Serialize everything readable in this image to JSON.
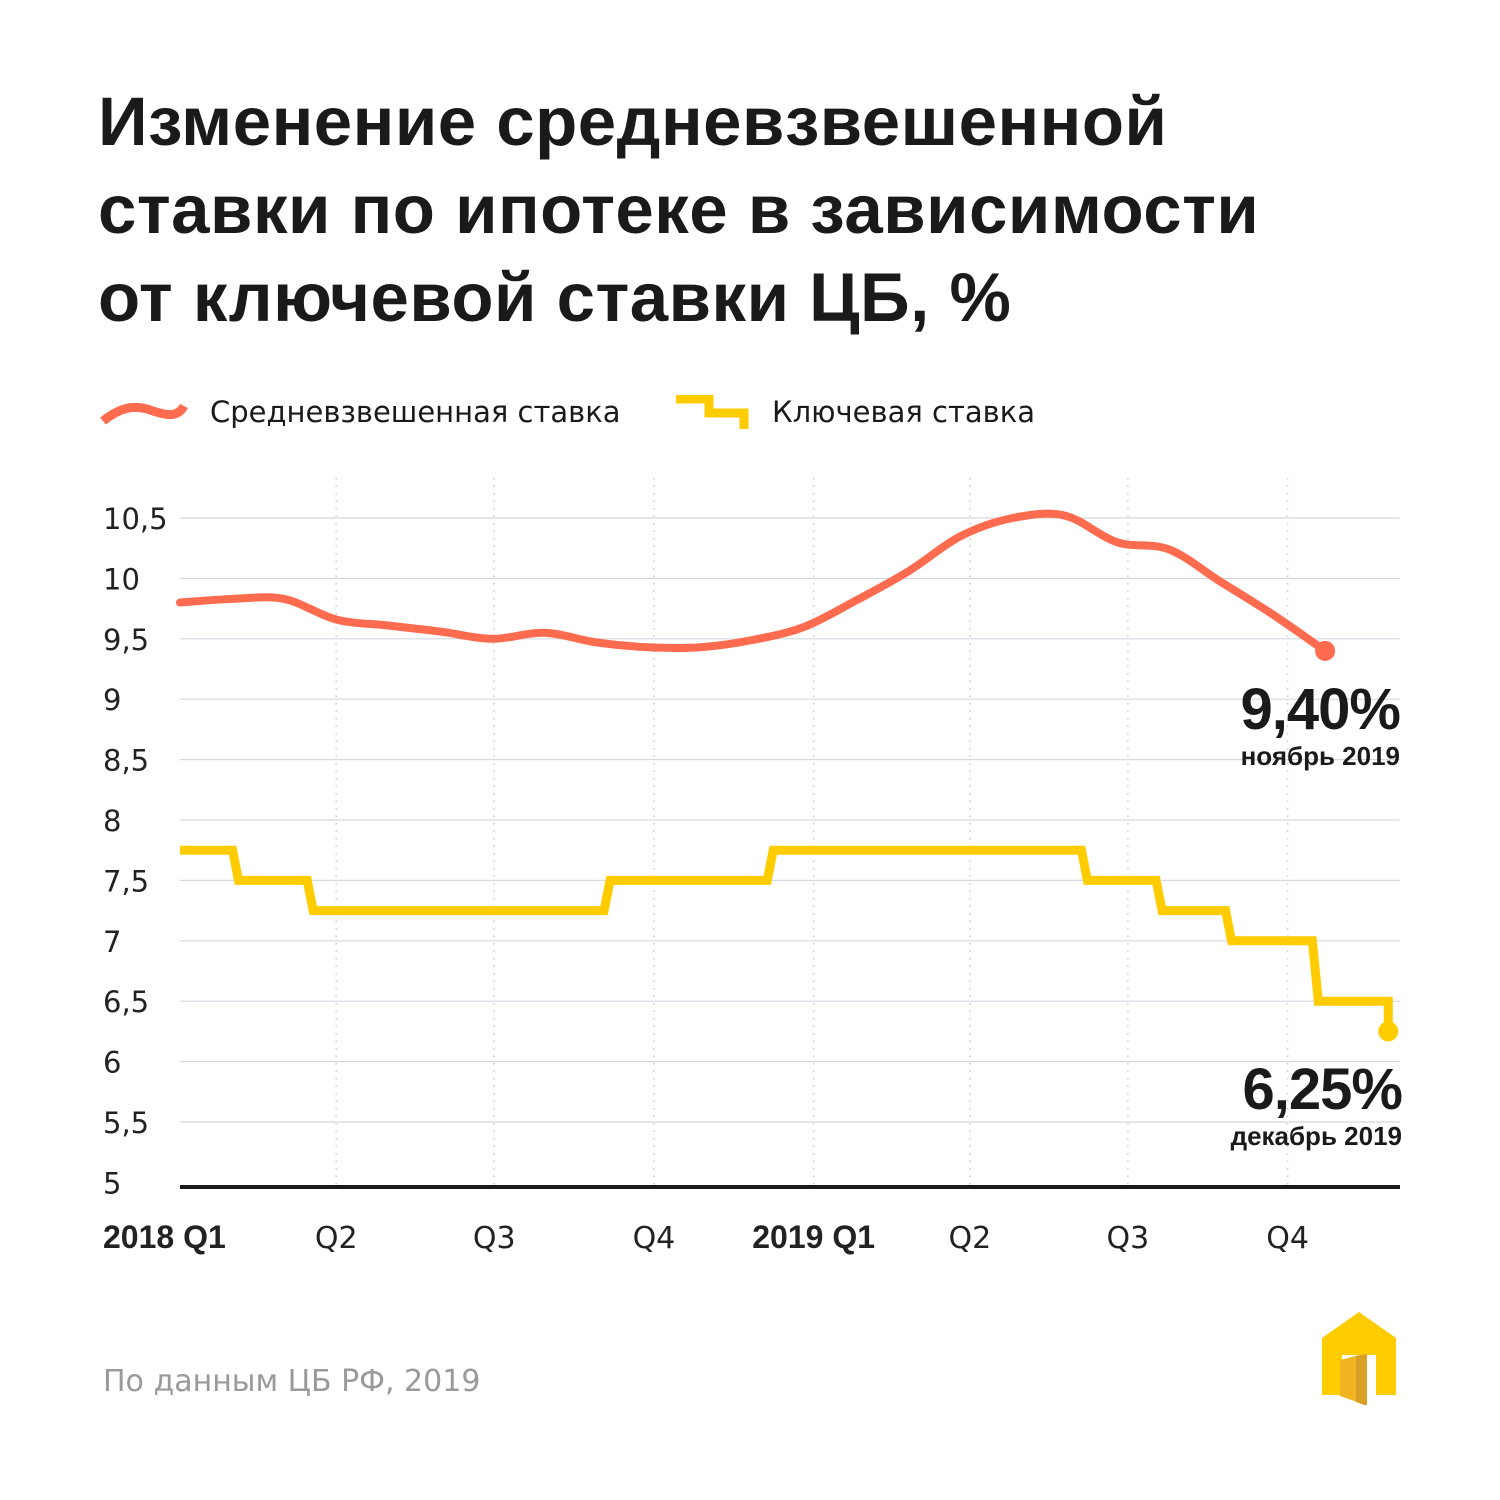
{
  "title_lines": [
    "Изменение средневзвешенной",
    "ставки по ипотеке в зависимости",
    "от ключевой ставки ЦБ, %"
  ],
  "source": "По данным ЦБ РФ, 2019",
  "logo_icon": "house-with-open-door-icon",
  "chart_data": {
    "type": "line",
    "title": "Изменение средневзвешенной ставки по ипотеке в зависимости от ключевой ставки ЦБ, %",
    "ylim": [
      5,
      10.5
    ],
    "y_ticks": [
      10.5,
      10,
      9.5,
      9,
      8.5,
      8,
      7.5,
      7,
      6.5,
      6,
      5.5,
      5
    ],
    "y_tick_labels": [
      "10,5",
      "10",
      "9,5",
      "9",
      "8,5",
      "8",
      "7,5",
      "7",
      "6,5",
      "6",
      "5,5",
      "5"
    ],
    "x_ticks": [
      {
        "date": "2018-01-01",
        "label": "2018 Q1",
        "bold": true
      },
      {
        "date": "2018-04-01",
        "label": "Q2",
        "bold": false
      },
      {
        "date": "2018-07-01",
        "label": "Q3",
        "bold": false
      },
      {
        "date": "2018-10-01",
        "label": "Q4",
        "bold": false
      },
      {
        "date": "2019-01-01",
        "label": "2019 Q1",
        "bold": true
      },
      {
        "date": "2019-04-01",
        "label": "Q2",
        "bold": false
      },
      {
        "date": "2019-07-01",
        "label": "Q3",
        "bold": false
      },
      {
        "date": "2019-10-01",
        "label": "Q4",
        "bold": false
      }
    ],
    "grid": true,
    "legend_position": "top-left",
    "series": [
      {
        "name": "Средневзвешенная ставка",
        "color": "#ff6b4f",
        "style": "smooth",
        "dates": [
          "2018-01",
          "2018-02",
          "2018-03",
          "2018-04",
          "2018-05",
          "2018-06",
          "2018-07",
          "2018-08",
          "2018-09",
          "2018-10",
          "2018-11",
          "2018-12",
          "2019-01",
          "2019-02",
          "2019-03",
          "2019-04",
          "2019-05",
          "2019-06",
          "2019-07",
          "2019-08",
          "2019-09",
          "2019-10",
          "2019-11"
        ],
        "values": [
          9.8,
          9.83,
          9.83,
          9.66,
          9.61,
          9.56,
          9.5,
          9.55,
          9.47,
          9.43,
          9.43,
          9.49,
          9.6,
          9.82,
          10.06,
          10.35,
          10.5,
          10.52,
          10.3,
          10.24,
          9.97,
          9.7,
          9.4
        ],
        "end_label": {
          "value": "9,40%",
          "caption": "ноябрь 2019"
        }
      },
      {
        "name": "Ключевая ставка",
        "color": "#ffcc00",
        "style": "step",
        "dates": [
          "2018-01-01",
          "2018-02-02",
          "2018-03-17",
          "2018-09-04",
          "2018-12-07",
          "2019-06-06",
          "2019-07-19",
          "2019-08-28",
          "2019-10-17",
          "2019-11-28"
        ],
        "values": [
          7.75,
          7.5,
          7.25,
          7.5,
          7.75,
          7.5,
          7.25,
          7.0,
          6.5,
          6.25
        ],
        "end_label": {
          "value": "6,25%",
          "caption": "декабрь 2019"
        }
      }
    ]
  }
}
